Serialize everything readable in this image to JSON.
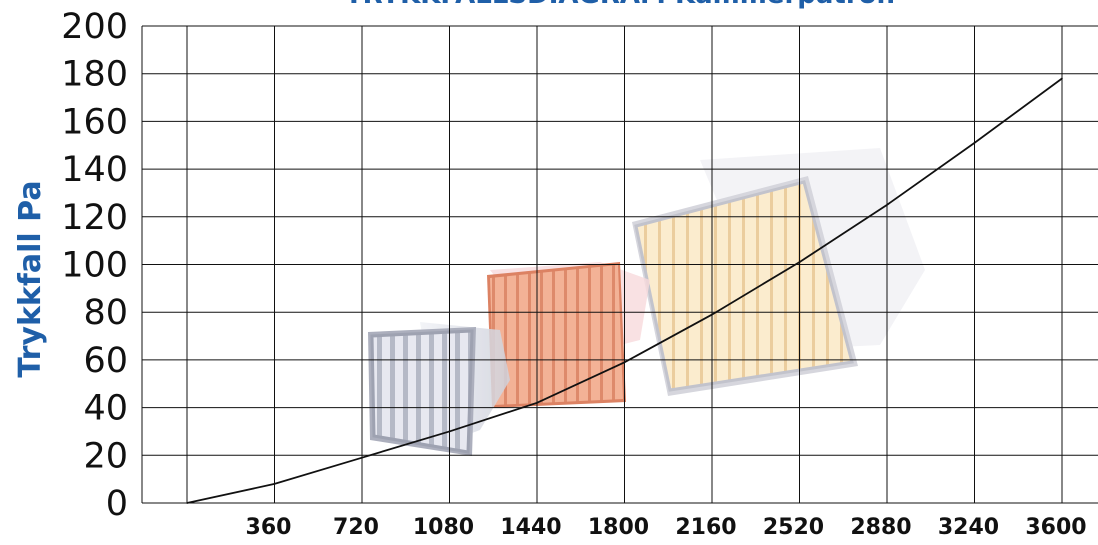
{
  "colors": {
    "accent": "#1f5fa8",
    "grid": "#111111",
    "line": "#111111",
    "filter_white": "#c9cbd6",
    "filter_orange": "#e8926a",
    "filter_yellow": "#f2cd8e"
  },
  "chart_data": {
    "type": "line",
    "title": "TRYKKFALLSDIAGRAM Kammerpatron",
    "ylabel": "Trykkfall Pa",
    "xlabel": "",
    "x_ticks": [
      360,
      720,
      1080,
      1440,
      1800,
      2160,
      2520,
      2880,
      3240,
      3600
    ],
    "y_ticks": [
      0,
      20,
      40,
      60,
      80,
      100,
      120,
      140,
      160,
      180,
      200
    ],
    "xlim": [
      0,
      3600
    ],
    "ylim": [
      0,
      200
    ],
    "grid": true,
    "series": [
      {
        "x": [
          0,
          360,
          720,
          1080,
          1440,
          1800,
          2160,
          2520,
          2880,
          3240,
          3600
        ],
        "y": [
          0,
          8,
          19,
          30,
          42,
          59,
          79,
          101,
          125,
          151,
          178
        ]
      }
    ],
    "decoration": "filter-cartridge-photos"
  }
}
